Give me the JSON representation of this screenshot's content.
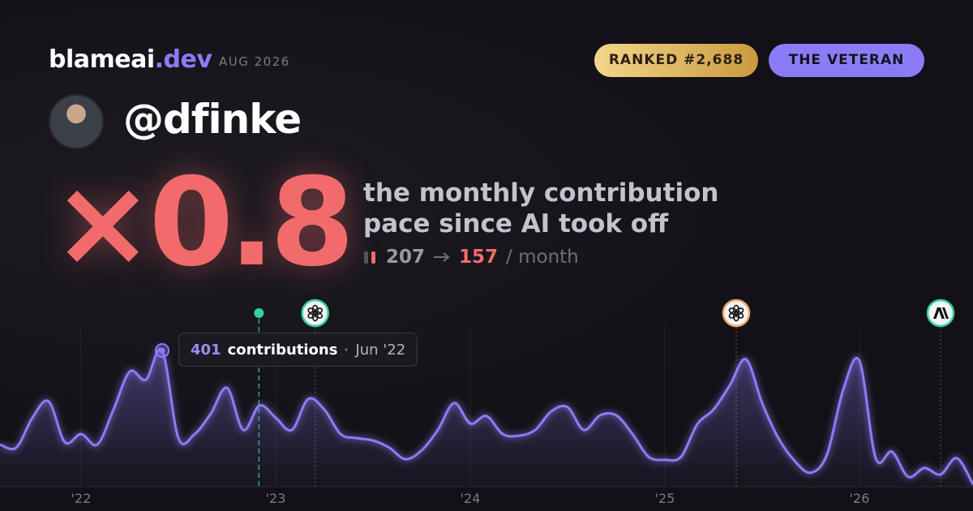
{
  "header": {
    "brand": "blameai",
    "brand_suffix": ".dev",
    "date": "AUG 2026",
    "rank_badge": "RANKED #2,688",
    "title_badge": "THE VETERAN"
  },
  "profile": {
    "handle": "@dfinke"
  },
  "headline": {
    "multiplier": "×0.8",
    "description": [
      "the monthly contribution",
      "pace since AI took off"
    ],
    "before": "207",
    "after": "157",
    "unit": "/ month"
  },
  "chart_data": {
    "type": "line",
    "x": [
      "2021-08",
      "2021-09",
      "2021-10",
      "2021-11",
      "2021-12",
      "2022-01",
      "2022-02",
      "2022-03",
      "2022-04",
      "2022-05",
      "2022-06",
      "2022-07",
      "2022-08",
      "2022-09",
      "2022-10",
      "2022-11",
      "2022-12",
      "2023-01",
      "2023-02",
      "2023-03",
      "2023-04",
      "2023-05",
      "2023-06",
      "2023-07",
      "2023-08",
      "2023-09",
      "2023-10",
      "2023-11",
      "2023-12",
      "2024-01",
      "2024-02",
      "2024-03",
      "2024-04",
      "2024-05",
      "2024-06",
      "2024-07",
      "2024-08",
      "2024-09",
      "2024-10",
      "2024-11",
      "2024-12",
      "2025-01",
      "2025-02",
      "2025-03",
      "2025-04",
      "2025-05",
      "2025-06",
      "2025-07",
      "2025-08",
      "2025-09",
      "2025-10",
      "2025-11",
      "2025-12",
      "2026-01",
      "2026-02",
      "2026-03",
      "2026-04",
      "2026-05",
      "2026-06",
      "2026-07",
      "2026-08"
    ],
    "series": [
      {
        "name": "contributions",
        "color": "#8b7cf6",
        "values": [
          124,
          115,
          203,
          251,
          131,
          155,
          124,
          227,
          339,
          315,
          401,
          143,
          155,
          215,
          291,
          167,
          239,
          203,
          167,
          258,
          227,
          155,
          143,
          136,
          115,
          81,
          107,
          167,
          246,
          186,
          208,
          155,
          150,
          167,
          222,
          234,
          167,
          210,
          210,
          155,
          88,
          79,
          88,
          184,
          227,
          298,
          375,
          246,
          143,
          76,
          41,
          95,
          286,
          370,
          84,
          103,
          29,
          55,
          36,
          84,
          7
        ]
      }
    ],
    "xlim": [
      "2021-08",
      "2026-08"
    ],
    "xticks": [
      {
        "value": "2022-01",
        "label": "'22"
      },
      {
        "value": "2023-01",
        "label": "'23"
      },
      {
        "value": "2024-01",
        "label": "'24"
      },
      {
        "value": "2025-01",
        "label": "'25"
      },
      {
        "value": "2026-01",
        "label": "'26"
      }
    ],
    "ylim": [
      0,
      480
    ],
    "grid": true,
    "tooltip": {
      "index": 10,
      "label": "contributions",
      "date": "Jun '22"
    },
    "markers": [
      {
        "x": "2022-11-30",
        "style": "dot",
        "color": "#34d399"
      },
      {
        "x": "2023-03-14",
        "style": "openai",
        "color": "#34d399"
      },
      {
        "x": "2025-05-13",
        "style": "openai",
        "color": "#f0a868"
      },
      {
        "x": "2026-06-01",
        "style": "anthropic",
        "color": "#34d399"
      }
    ]
  }
}
